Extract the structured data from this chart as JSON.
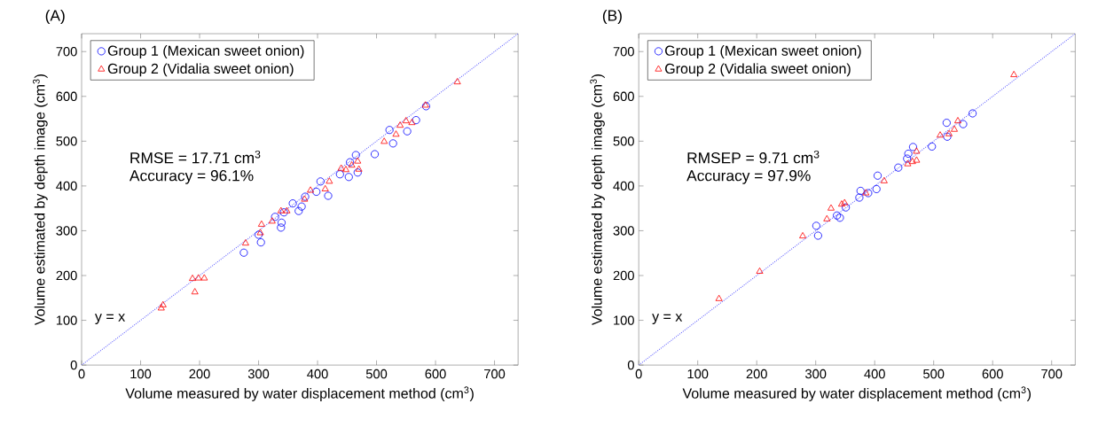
{
  "chart_data": [
    {
      "type": "scatter",
      "title": "(A)",
      "xlabel": "Volume measured by water displacement method (cm$^{3}$)",
      "ylabel": "Volume estimated by depth image (cm$^{3}$)",
      "xlim": [
        0,
        740
      ],
      "ylim": [
        0,
        740
      ],
      "xticks": [
        0,
        100,
        200,
        300,
        400,
        500,
        600,
        700
      ],
      "yticks": [
        0,
        100,
        200,
        300,
        400,
        500,
        600,
        700
      ],
      "grid": false,
      "legend": "top left",
      "annotations": [
        "RMSE = 17.71 cm$^{3}$",
        "Accuracy = 96.1%"
      ],
      "series": [
        {
          "name": "Group 1 (Mexican sweet onion)",
          "color": "#0000ff",
          "marker": "circle",
          "x": [
            275,
            304,
            300,
            338,
            339,
            328,
            358,
            368,
            373,
            379,
            405,
            418,
            398,
            438,
            453,
            455,
            465,
            468,
            497,
            522,
            528,
            552,
            567,
            584,
            343
          ],
          "values": [
            251,
            274,
            291,
            307,
            318,
            331,
            361,
            344,
            354,
            376,
            410,
            378,
            387,
            426,
            420,
            453,
            469,
            430,
            471,
            525,
            495,
            522,
            547,
            578,
            341
          ]
        },
        {
          "name": "Group 2 (Vidalia sweet onion)",
          "color": "#ff0000",
          "marker": "triangle",
          "x": [
            637,
            583,
            550,
            560,
            540,
            533,
            513,
            468,
            458,
            448,
            440,
            470,
            420,
            413,
            388,
            378,
            348,
            338,
            323,
            305,
            303,
            278,
            208,
            198,
            188,
            192,
            138,
            135
          ],
          "values": [
            632,
            580,
            545,
            541,
            535,
            515,
            499,
            455,
            446,
            436,
            439,
            437,
            410,
            393,
            390,
            370,
            344,
            344,
            321,
            314,
            295,
            272,
            194,
            194,
            193,
            163,
            134,
            127
          ]
        },
        {
          "name": "y = x",
          "type": "line",
          "color": "#6666ff",
          "line_style": "dotted",
          "marker": "none",
          "x": [
            0,
            740
          ],
          "values": [
            0,
            740
          ]
        }
      ]
    },
    {
      "type": "scatter",
      "title": "(B)",
      "xlabel": "Volume measured by water displacement method (cm$^{3}$)",
      "ylabel": "Volume estimated by depth image (cm$^{3}$)",
      "xlim": [
        0,
        740
      ],
      "ylim": [
        0,
        740
      ],
      "xticks": [
        0,
        100,
        200,
        300,
        400,
        500,
        600,
        700
      ],
      "yticks": [
        0,
        100,
        200,
        300,
        400,
        500,
        600,
        700
      ],
      "grid": false,
      "legend": "top left",
      "annotations": [
        "RMSEP = 9.71 cm$^{3}$",
        "Accuracy = 97.9%"
      ],
      "series": [
        {
          "name": "Group 1 (Mexican sweet onion)",
          "color": "#0000ff",
          "marker": "circle",
          "x": [
            301,
            304,
            336,
            341,
            351,
            374,
            376,
            389,
            403,
            405,
            440,
            455,
            457,
            465,
            497,
            522,
            523,
            550,
            566
          ],
          "values": [
            311,
            289,
            334,
            329,
            352,
            374,
            389,
            384,
            393,
            423,
            441,
            461,
            472,
            487,
            488,
            541,
            510,
            538,
            562
          ]
        },
        {
          "name": "Group 2 (Vidalia sweet onion)",
          "color": "#ff0000",
          "marker": "triangle",
          "x": [
            636,
            541,
            535,
            526,
            511,
            471,
            471,
            464,
            456,
            416,
            385,
            349,
            344,
            326,
            319,
            278,
            205,
            136
          ],
          "values": [
            648,
            545,
            526,
            516,
            513,
            477,
            457,
            454,
            449,
            411,
            384,
            362,
            359,
            350,
            326,
            288,
            209,
            148
          ]
        },
        {
          "name": "y = x",
          "type": "line",
          "color": "#6666ff",
          "line_style": "dotted",
          "marker": "none",
          "x": [
            0,
            740
          ],
          "values": [
            0,
            740
          ]
        }
      ]
    }
  ]
}
